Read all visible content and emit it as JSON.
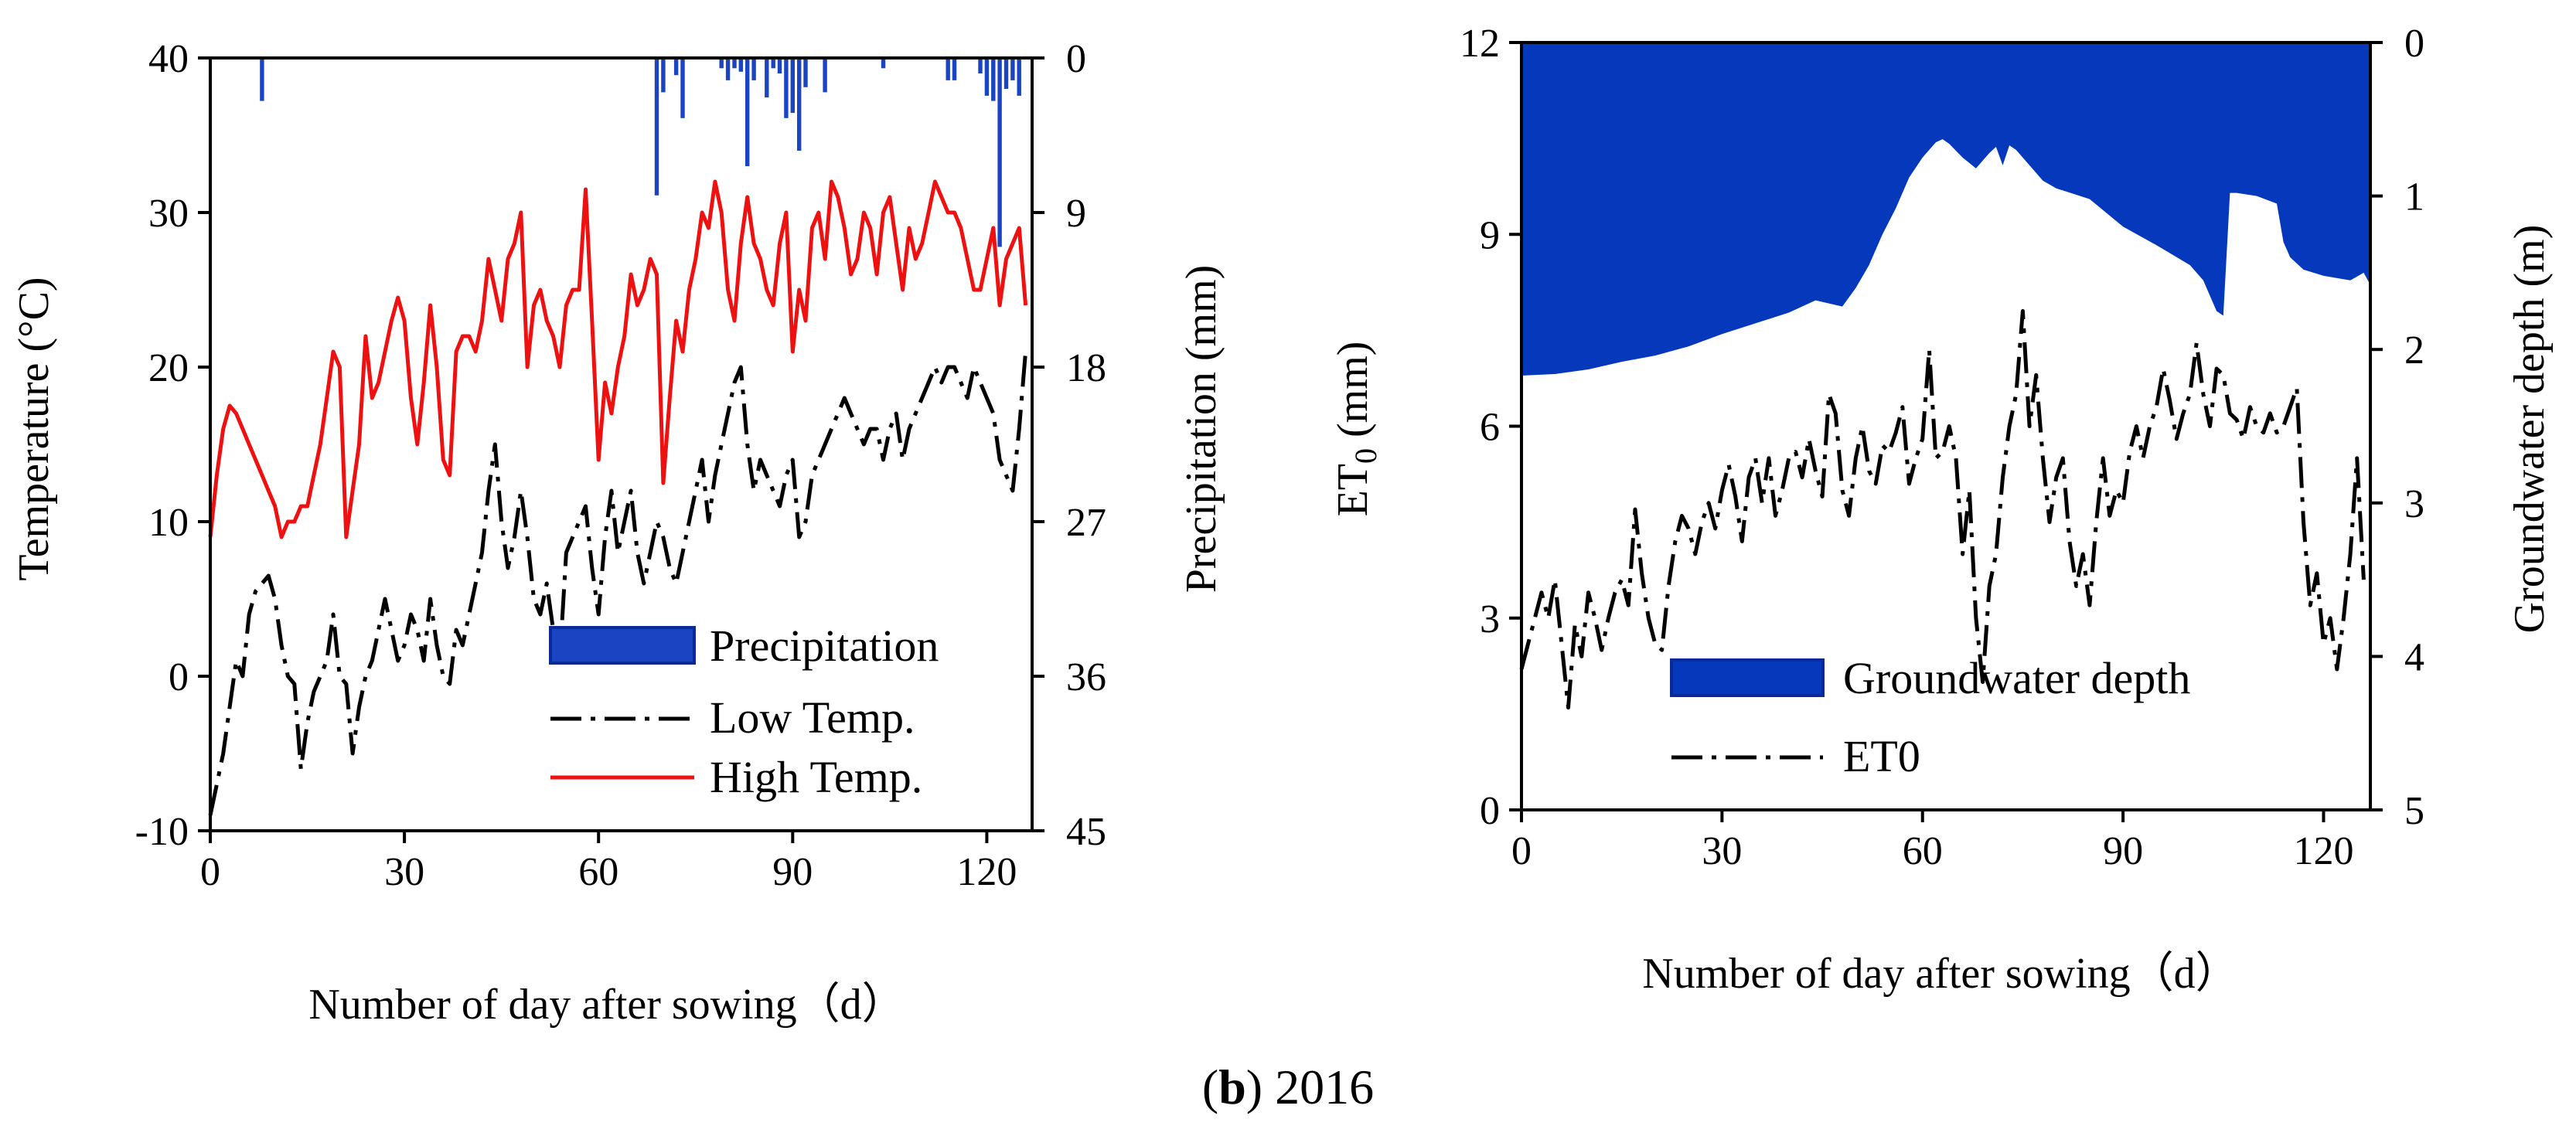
{
  "caption": {
    "bold": "b",
    "text": "2016"
  },
  "chart_data": [
    {
      "type": "line",
      "title": "",
      "xlabel": "Number of day after sowing（d）",
      "ylabel": "Temperature (°C)",
      "y2label": "Precipitation (mm)",
      "xlim": [
        0,
        127
      ],
      "ylim": [
        -10,
        40
      ],
      "y2lim": [
        0,
        45
      ],
      "y2_inverted": true,
      "xticks": [
        "0",
        "30",
        "60",
        "90",
        "120"
      ],
      "xtick_values": [
        0,
        30,
        60,
        90,
        120
      ],
      "yticks": [
        "40",
        "30",
        "20",
        "10",
        "0",
        "-10"
      ],
      "ytick_values": [
        40,
        30,
        20,
        10,
        0,
        -10
      ],
      "y2ticks": [
        "0",
        "9",
        "18",
        "27",
        "36",
        "45"
      ],
      "y2tick_values": [
        0,
        9,
        18,
        27,
        36,
        45
      ],
      "legend_position": "bottom-right",
      "legend": [
        "Precipitation",
        "Low Temp.",
        "High Temp."
      ],
      "series": [
        {
          "name": "Precipitation",
          "kind": "bar",
          "axis": "y2",
          "color": "#1a44c2",
          "x": [
            8,
            69,
            70,
            72,
            73,
            79,
            80,
            81,
            82,
            83,
            84,
            86,
            87,
            88,
            89,
            90,
            91,
            92,
            95,
            104,
            114,
            115,
            119,
            120,
            121,
            122,
            123,
            124,
            125
          ],
          "values": [
            2.5,
            8,
            2,
            1,
            3.5,
            0.6,
            1.3,
            0.6,
            0.8,
            6.3,
            1.3,
            2.3,
            0.6,
            0.9,
            3.5,
            3.2,
            5.4,
            1.7,
            2,
            0.6,
            1.3,
            1.3,
            0.9,
            2.2,
            2.5,
            11,
            1.8,
            1.3,
            2.2
          ]
        },
        {
          "name": "Low Temp.",
          "kind": "line",
          "axis": "y",
          "color": "#000000",
          "dash": "dashdot",
          "values": [
            -9,
            -7,
            -5,
            -2,
            1,
            0,
            4,
            5.5,
            6,
            6.5,
            5,
            2,
            0,
            -0.5,
            -6,
            -3,
            -1,
            0,
            1,
            4,
            0,
            -0.5,
            -5,
            -2,
            0,
            1,
            3,
            5,
            3,
            1,
            2,
            4,
            3,
            1,
            5,
            2,
            0,
            -0.5,
            3,
            2,
            4,
            6,
            8,
            12,
            15,
            10,
            7,
            9,
            12,
            9,
            5,
            4,
            6,
            3,
            1,
            8,
            9,
            10,
            11,
            7,
            4,
            9,
            12,
            8,
            10,
            12,
            8,
            6,
            8,
            10,
            9,
            7,
            6,
            8,
            10,
            12,
            14,
            10,
            13,
            15,
            17,
            19,
            20,
            15,
            12,
            14,
            13,
            12,
            11,
            13,
            14,
            9,
            10,
            13,
            14,
            15,
            16,
            17,
            18,
            17,
            16,
            15,
            16,
            16,
            14,
            16,
            17,
            14,
            16,
            17,
            18,
            19,
            20,
            19,
            20,
            20,
            19,
            18,
            20,
            19,
            18,
            17,
            14,
            13,
            12,
            16,
            21
          ]
        },
        {
          "name": "High Temp.",
          "kind": "line",
          "axis": "y",
          "color": "#ee1111",
          "dash": "solid",
          "values": [
            9,
            13,
            16,
            17.5,
            17,
            16,
            15,
            14,
            13,
            12,
            11,
            9,
            10,
            10,
            11,
            11,
            13,
            15,
            18,
            21,
            20,
            9,
            12,
            15,
            22,
            18,
            19,
            21,
            23,
            24.5,
            23,
            18,
            15,
            19,
            24,
            20,
            14,
            13,
            21,
            22,
            22,
            21,
            23,
            27,
            25,
            23,
            27,
            28,
            30,
            20,
            24,
            25,
            23,
            22,
            20,
            24,
            25,
            25,
            31.5,
            23,
            14,
            19,
            17,
            20,
            22,
            26,
            24,
            25,
            27,
            26,
            12.5,
            18,
            23,
            21,
            25,
            27,
            30,
            29,
            32,
            30,
            25,
            23,
            28,
            31,
            28,
            27,
            25,
            24,
            28,
            30,
            21,
            25,
            23,
            29,
            30,
            27,
            32,
            31,
            29,
            26,
            27,
            30,
            29,
            26,
            30,
            31,
            28,
            25,
            29,
            27,
            28,
            30,
            32,
            31,
            30,
            30,
            29,
            27,
            25,
            25,
            27,
            29,
            24,
            27,
            28,
            29,
            24
          ]
        }
      ]
    },
    {
      "type": "area",
      "title": "",
      "xlabel": "Number of day after sowing（d）",
      "ylabel_prefix": "ET",
      "ylabel_sub": "0",
      "ylabel_suffix": " (mm)",
      "y2label": "Groundwater depth (m)",
      "xlim": [
        0,
        127
      ],
      "ylim": [
        0,
        12
      ],
      "y2lim": [
        0,
        5
      ],
      "y2_inverted": true,
      "xticks": [
        "0",
        "30",
        "60",
        "90",
        "120"
      ],
      "xtick_values": [
        0,
        30,
        60,
        90,
        120
      ],
      "yticks": [
        "12",
        "9",
        "6",
        "3",
        "0"
      ],
      "ytick_values": [
        12,
        9,
        6,
        3,
        0
      ],
      "y2ticks": [
        "0",
        "1",
        "2",
        "3",
        "4",
        "5"
      ],
      "y2tick_values": [
        0,
        1,
        2,
        3,
        4,
        5
      ],
      "legend_position": "bottom-right",
      "legend": [
        "Groundwater depth",
        "ET0"
      ],
      "series": [
        {
          "name": "Groundwater depth",
          "kind": "area",
          "axis": "y2",
          "color": "#0538bb",
          "x": [
            0,
            5,
            10,
            15,
            20,
            25,
            30,
            35,
            40,
            44,
            46,
            48,
            50,
            52,
            54,
            56,
            58,
            60,
            62,
            63,
            64,
            66,
            68,
            70,
            71,
            72,
            73,
            74,
            76,
            78,
            80,
            85,
            90,
            95,
            100,
            102,
            103,
            104,
            105,
            106,
            107,
            110,
            113,
            114,
            115,
            117,
            120,
            124,
            126,
            127
          ],
          "values": [
            2.17,
            2.16,
            2.13,
            2.08,
            2.04,
            1.98,
            1.9,
            1.83,
            1.76,
            1.68,
            1.7,
            1.72,
            1.6,
            1.45,
            1.25,
            1.08,
            0.88,
            0.75,
            0.65,
            0.63,
            0.66,
            0.75,
            0.82,
            0.72,
            0.68,
            0.8,
            0.67,
            0.7,
            0.8,
            0.9,
            0.95,
            1.02,
            1.2,
            1.32,
            1.45,
            1.55,
            1.65,
            1.75,
            1.78,
            0.98,
            0.98,
            1.0,
            1.05,
            1.3,
            1.4,
            1.48,
            1.52,
            1.55,
            1.5,
            1.58
          ]
        },
        {
          "name": "ET0",
          "kind": "line",
          "axis": "y",
          "color": "#000000",
          "dash": "dashdot",
          "values": [
            2.2,
            2.6,
            3.0,
            3.4,
            3.0,
            3.6,
            2.6,
            1.6,
            2.9,
            2.4,
            3.4,
            3.0,
            2.5,
            3.0,
            3.4,
            3.6,
            3.2,
            4.7,
            3.7,
            3.0,
            2.6,
            2.5,
            3.5,
            4.2,
            4.6,
            4.4,
            4.0,
            4.5,
            4.8,
            4.4,
            5.0,
            5.4,
            4.9,
            4.2,
            5.2,
            5.5,
            4.8,
            5.5,
            4.6,
            5.0,
            5.5,
            5.6,
            5.2,
            5.8,
            5.3,
            4.9,
            6.5,
            6.2,
            5.0,
            4.6,
            5.5,
            6.0,
            5.3,
            5.1,
            5.7,
            5.6,
            5.9,
            6.3,
            5.1,
            5.5,
            5.8,
            7.2,
            5.5,
            5.6,
            6.0,
            5.5,
            4.0,
            5.0,
            3.0,
            2.0,
            3.5,
            4.0,
            5.2,
            6.0,
            6.5,
            7.8,
            6.0,
            6.8,
            5.5,
            4.5,
            5.2,
            5.5,
            4.2,
            3.5,
            4.0,
            3.2,
            4.5,
            5.5,
            4.6,
            5.0,
            4.8,
            5.6,
            6.0,
            5.5,
            6.0,
            6.3,
            6.9,
            6.4,
            5.8,
            6.2,
            6.5,
            7.3,
            6.5,
            6.0,
            6.9,
            6.8,
            6.2,
            6.1,
            5.8,
            6.3,
            6.0,
            5.9,
            6.2,
            5.9,
            6.0,
            6.3,
            6.6,
            4.5,
            3.2,
            3.7,
            2.6,
            3.0,
            2.2,
            3.0,
            4.0,
            5.5,
            3.6
          ]
        }
      ]
    }
  ]
}
